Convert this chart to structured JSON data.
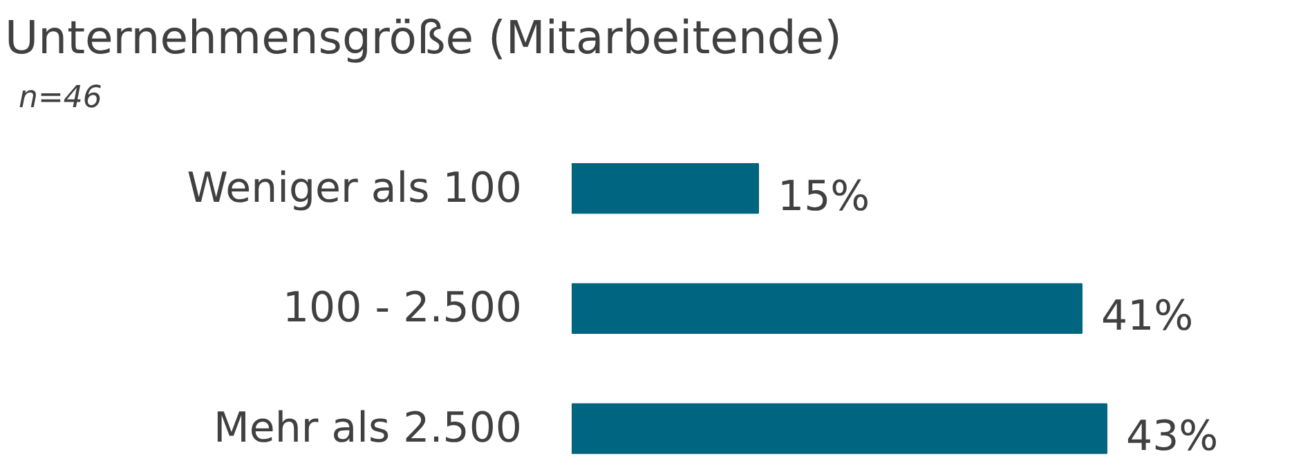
{
  "chart_data": {
    "type": "bar",
    "orientation": "horizontal",
    "title": "Unternehmensgröße (Mitarbeitende)",
    "subtitle": "n=46",
    "categories": [
      "Weniger als 100",
      "100 - 2.500",
      "Mehr als 2.500"
    ],
    "values": [
      15,
      41,
      43
    ],
    "color": "#006580",
    "data_labels": true,
    "value_labels": [
      "15%",
      "41%",
      "43%"
    ]
  }
}
